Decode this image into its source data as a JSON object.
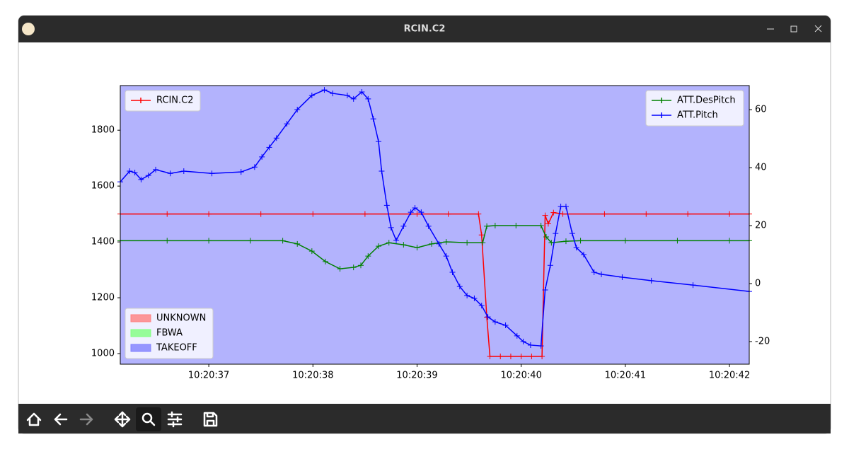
{
  "window": {
    "title": "RCIN.C2"
  },
  "chart_data": {
    "type": "line",
    "xlim": [
      36.15,
      42.19
    ],
    "xticks": [
      {
        "value": 37,
        "label": "10:20:37"
      },
      {
        "value": 38,
        "label": "10:20:38"
      },
      {
        "value": 39,
        "label": "10:20:39"
      },
      {
        "value": 40,
        "label": "10:20:40"
      },
      {
        "value": 41,
        "label": "10:20:41"
      },
      {
        "value": 42,
        "label": "10:20:42"
      }
    ],
    "ylim": [
      962,
      1960
    ],
    "yticks": [
      1000,
      1200,
      1400,
      1600,
      1800
    ],
    "y2lim": [
      -27.8,
      68.3
    ],
    "y2ticks": [
      -20,
      0,
      20,
      40,
      60
    ],
    "background": "#b3b3fd",
    "series": [
      {
        "name": "RCIN.C2",
        "color": "#ff0000",
        "legend": "upper left",
        "x": [
          36.15,
          36.6,
          37.0,
          37.5,
          38.0,
          38.5,
          39.0,
          39.3,
          39.59,
          39.62,
          39.67,
          39.7,
          39.8,
          39.9,
          40.0,
          40.1,
          40.2,
          40.23,
          40.26,
          40.31,
          40.4,
          40.8,
          41.2,
          41.6,
          42.0,
          42.19
        ],
        "values": [
          1500,
          1500,
          1500,
          1500,
          1500,
          1500,
          1500,
          1500,
          1500,
          1425,
          1130,
          990,
          990,
          990,
          990,
          990,
          990,
          1495,
          1465,
          1505,
          1500,
          1500,
          1500,
          1500,
          1500,
          1500
        ]
      },
      {
        "name": "ATT.DesPitch",
        "color": "#008000",
        "axis": "y2",
        "legend": "upper right",
        "x": [
          36.15,
          36.6,
          37.0,
          37.4,
          37.71,
          37.85,
          37.99,
          38.12,
          38.26,
          38.39,
          38.46,
          38.53,
          38.63,
          38.73,
          38.87,
          39.0,
          39.14,
          39.28,
          39.48,
          39.63,
          39.67,
          39.75,
          39.95,
          40.19,
          40.24,
          40.29,
          40.43,
          40.57,
          41.0,
          41.5,
          42.0,
          42.19
        ],
        "values": [
          14.8,
          14.8,
          14.8,
          14.8,
          14.8,
          13.7,
          11.2,
          7.6,
          5.1,
          5.6,
          6.3,
          9.5,
          12.9,
          14.1,
          13.4,
          12.4,
          13.7,
          14.4,
          14.1,
          14.1,
          19.8,
          20,
          20,
          20,
          16.1,
          14.1,
          14.6,
          14.8,
          14.8,
          14.8,
          14.8,
          14.8
        ]
      },
      {
        "name": "ATT.Pitch",
        "color": "#0000ff",
        "axis": "y2",
        "legend": "upper right",
        "x": [
          36.15,
          36.24,
          36.29,
          36.35,
          36.42,
          36.49,
          36.63,
          36.76,
          37.03,
          37.31,
          37.44,
          37.51,
          37.58,
          37.65,
          37.75,
          37.85,
          37.99,
          38.11,
          38.19,
          38.33,
          38.39,
          38.47,
          38.53,
          38.58,
          38.63,
          38.66,
          38.71,
          38.75,
          38.8,
          38.87,
          38.94,
          38.98,
          39.04,
          39.11,
          39.21,
          39.28,
          39.34,
          39.41,
          39.48,
          39.55,
          39.62,
          39.68,
          39.75,
          39.85,
          39.96,
          40.02,
          40.09,
          40.19,
          40.23,
          40.28,
          40.33,
          40.38,
          40.43,
          40.49,
          40.53,
          40.6,
          40.7,
          40.77,
          40.97,
          41.25,
          41.65,
          42.19
        ],
        "values": [
          35.1,
          38.8,
          38.3,
          35.9,
          37.3,
          39.3,
          38,
          38.8,
          38,
          38.5,
          40.2,
          43.7,
          47,
          50.2,
          55.1,
          60,
          64.9,
          66.8,
          65.6,
          64.9,
          63.7,
          66.1,
          63.7,
          56.8,
          49,
          38.8,
          27,
          19.3,
          14.9,
          19.8,
          24.6,
          26.1,
          24.6,
          19.8,
          13.7,
          9.5,
          3.9,
          -1,
          -4.1,
          -5.1,
          -7.6,
          -11.5,
          -13.2,
          -14.4,
          -18,
          -20,
          -21.2,
          -21.5,
          -2.2,
          6.3,
          17.3,
          26.6,
          26.6,
          17.3,
          12.4,
          10,
          3.9,
          3.2,
          2.2,
          1,
          -0.5,
          -2.7
        ]
      }
    ],
    "modes": [
      {
        "name": "UNKNOWN",
        "color": "#ff8080"
      },
      {
        "name": "FBWA",
        "color": "#80ff80"
      },
      {
        "name": "TAKEOFF",
        "color": "#8080ff"
      }
    ],
    "modes_legend": "lower left"
  }
}
